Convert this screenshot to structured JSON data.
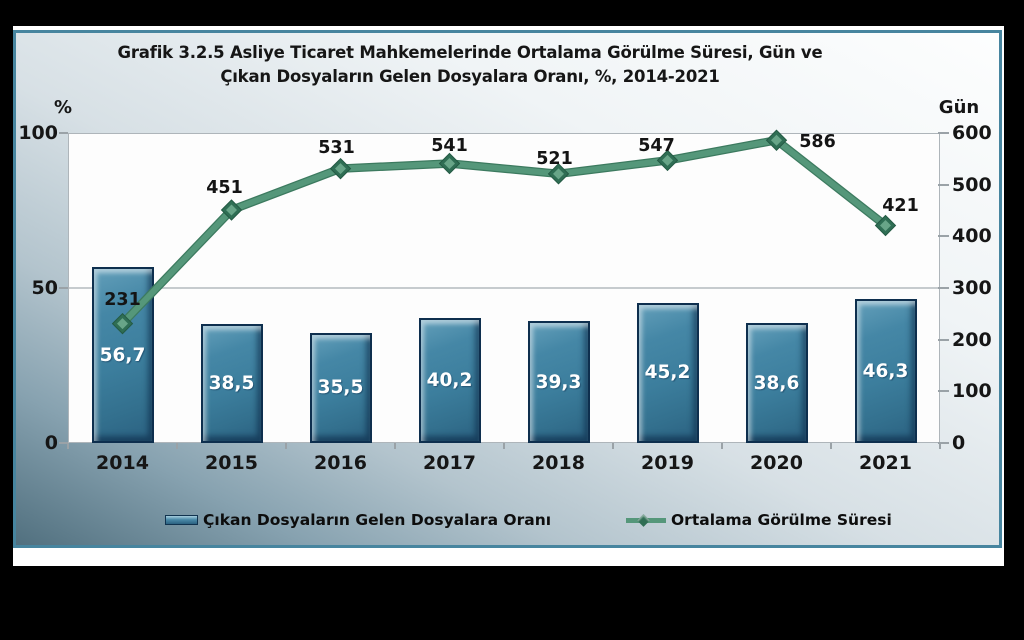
{
  "chart_data": {
    "type": "combo-bar-line",
    "title_line1": "Grafik 3.2.5 Asliye Ticaret Mahkemelerinde Ortalama Görülme Süresi, Gün ve",
    "title_line2": "Çıkan Dosyaların Gelen Dosyalara Oranı, %, 2014-2021",
    "categories": [
      "2014",
      "2015",
      "2016",
      "2017",
      "2018",
      "2019",
      "2020",
      "2021"
    ],
    "series": [
      {
        "name": "Çıkan Dosyaların Gelen Dosyalara Oranı",
        "type": "bar",
        "axis": "left",
        "values": [
          56.7,
          38.5,
          35.5,
          40.2,
          39.3,
          45.2,
          38.6,
          46.3
        ],
        "labels": [
          "56,7",
          "38,5",
          "35,5",
          "40,2",
          "39,3",
          "45,2",
          "38,6",
          "46,3"
        ]
      },
      {
        "name": "Ortalama Görülme Süresi",
        "type": "line",
        "axis": "right",
        "values": [
          231,
          451,
          531,
          541,
          521,
          547,
          586,
          421
        ],
        "labels": [
          "231",
          "451",
          "531",
          "541",
          "521",
          "547",
          "586",
          "421"
        ],
        "label_offsets": [
          [
            0,
            -24
          ],
          [
            -7,
            -22
          ],
          [
            -4,
            -21
          ],
          [
            0,
            -17
          ],
          [
            -4,
            -15
          ],
          [
            -11,
            -14
          ],
          [
            41,
            2
          ],
          [
            15,
            -19
          ]
        ]
      }
    ],
    "left_axis": {
      "label": "%",
      "max": 100,
      "ticks": [
        0,
        50,
        100
      ],
      "tick_labels": [
        "0",
        "50",
        "100"
      ]
    },
    "right_axis": {
      "label": "Gün",
      "max": 600,
      "ticks": [
        0,
        100,
        200,
        300,
        400,
        500,
        600
      ],
      "tick_labels": [
        "0",
        "100",
        "200",
        "300",
        "400",
        "500",
        "600"
      ]
    },
    "grid": "single-horizontal-at-50",
    "legend_position": "bottom",
    "colors": {
      "bar_fill": "#3c7e9d",
      "bar_border": "#0e2f4e",
      "line": "#55977a",
      "line_dark": "#3c7a5f",
      "marker_outer": "#2f6e54",
      "marker_inner": "#6fab8e",
      "gridline": "#c6cbce",
      "axis_line": "#aeb5ba",
      "panel_border": "#47859f",
      "panel_gradient_dark": "#51707f",
      "background": "#000000",
      "bar_value_text": "#ffffff",
      "text": "#161616"
    }
  }
}
